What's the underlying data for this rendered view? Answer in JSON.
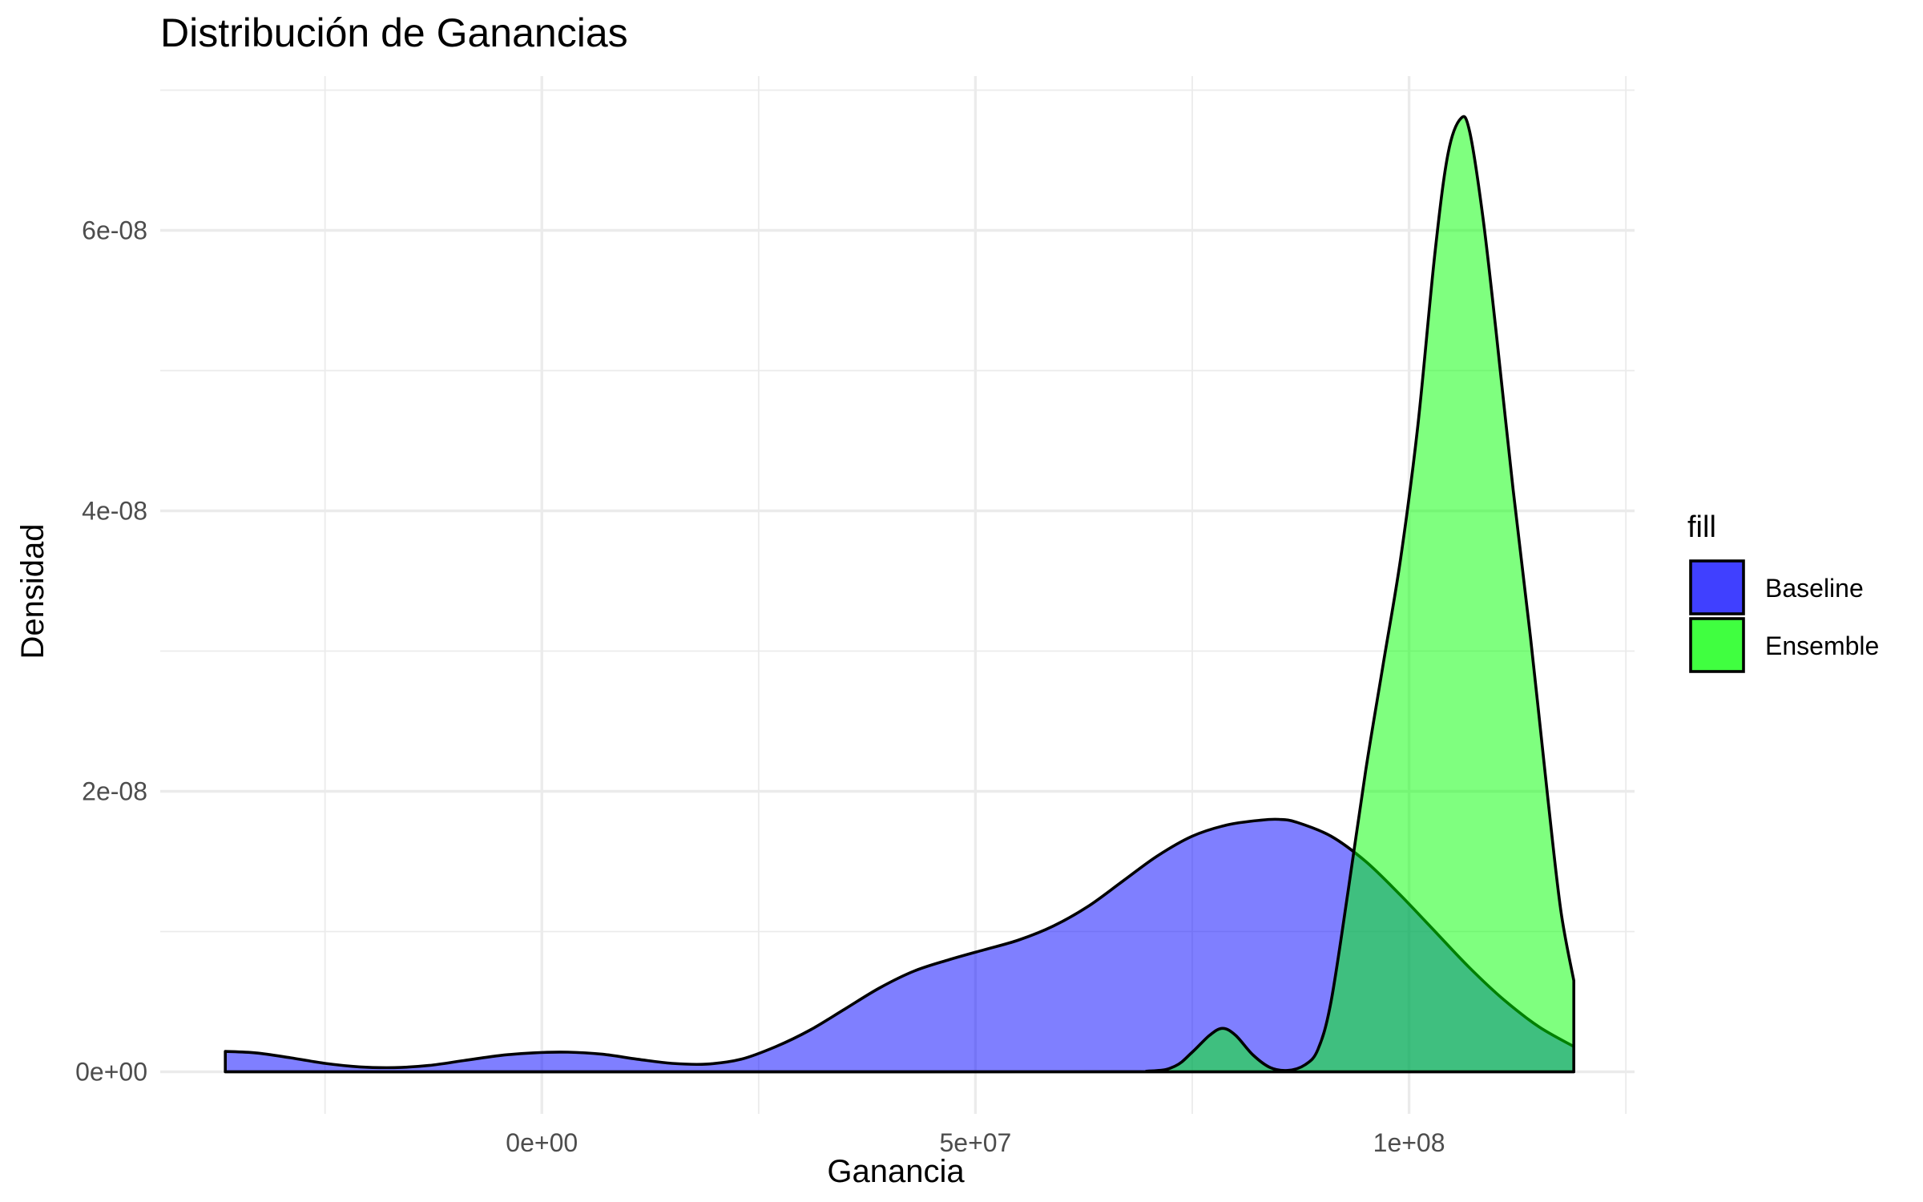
{
  "chart_data": {
    "type": "area",
    "subtype": "density",
    "title": "Distribución de Ganancias",
    "xlabel": "Ganancia",
    "ylabel": "Densidad",
    "xlim": [
      -44000000,
      126000000
    ],
    "ylim": [
      -3e-09,
      7.1e-08
    ],
    "x_ticks": [
      0,
      50000000,
      100000000
    ],
    "x_tick_labels": [
      "0e+00",
      "5e+07",
      "1e+08"
    ],
    "y_ticks": [
      0,
      2e-08,
      4e-08,
      6e-08
    ],
    "y_tick_labels": [
      "0e+00",
      "2e-08",
      "4e-08",
      "6e-08"
    ],
    "grid": true,
    "legend": {
      "title": "fill",
      "position": "right"
    },
    "series": [
      {
        "name": "Baseline",
        "color": "#0000ff",
        "alpha": 0.5,
        "x": [
          -36500000,
          -33000000,
          -29000000,
          -25000000,
          -21000000,
          -17000000,
          -13000000,
          -9000000,
          -5000000,
          -1000000,
          3000000,
          7000000,
          11000000,
          15000000,
          19000000,
          23000000,
          27000000,
          31000000,
          35000000,
          39000000,
          43000000,
          47000000,
          51000000,
          55000000,
          59000000,
          63000000,
          67000000,
          71000000,
          75000000,
          79000000,
          83000000,
          85000000,
          87000000,
          91000000,
          95000000,
          99000000,
          103000000,
          107000000,
          111000000,
          115000000,
          119000000
        ],
        "y": [
          1.45e-09,
          1.35e-09,
          1e-09,
          6e-10,
          3.5e-10,
          3e-10,
          4.5e-10,
          8e-10,
          1.15e-09,
          1.35e-09,
          1.4e-09,
          1.25e-09,
          9e-10,
          6e-10,
          5.5e-10,
          9e-10,
          1.8e-09,
          3e-09,
          4.5e-09,
          6e-09,
          7.2e-09,
          8e-09,
          8.7e-09,
          9.4e-09,
          1.04e-08,
          1.18e-08,
          1.36e-08,
          1.54e-08,
          1.68e-08,
          1.76e-08,
          1.795e-08,
          1.8e-08,
          1.78e-08,
          1.68e-08,
          1.5e-08,
          1.26e-08,
          1e-08,
          7.4e-09,
          5.1e-09,
          3.2e-09,
          1.8e-09
        ]
      },
      {
        "name": "Ensemble",
        "color": "#00ff00",
        "alpha": 0.5,
        "x": [
          -36500000,
          60000000,
          70000000,
          73000000,
          75000000,
          77000000,
          78500000,
          80000000,
          82000000,
          84000000,
          86000000,
          88000000,
          89500000,
          91000000,
          93000000,
          95000000,
          97000000,
          99000000,
          101000000,
          103000000,
          104500000,
          106000000,
          107000000,
          108500000,
          110000000,
          112000000,
          114000000,
          116000000,
          117500000,
          119000000
        ],
        "y": [
          0,
          0,
          5e-11,
          4e-10,
          1.4e-09,
          2.6e-09,
          3.1e-09,
          2.6e-09,
          1.2e-09,
          3e-10,
          1e-10,
          5e-10,
          1.6e-09,
          5e-09,
          1.3e-08,
          2.15e-08,
          2.9e-08,
          3.65e-08,
          4.6e-08,
          5.85e-08,
          6.55e-08,
          6.8e-08,
          6.7e-08,
          6.1e-08,
          5.3e-08,
          4.15e-08,
          3.1e-08,
          1.95e-08,
          1.15e-08,
          6.5e-09
        ]
      }
    ]
  }
}
